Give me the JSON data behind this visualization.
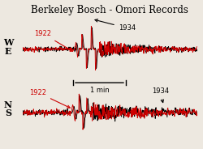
{
  "title": "Berkeley Bosch - Omori Records",
  "title_fontsize": 8.5,
  "background_color": "#ede8e0",
  "we_label": "W\nE",
  "ns_label": "N\nS",
  "label_fontsize": 8,
  "year1922_color": "#cc0000",
  "year1934_color": "#000000",
  "scale_bar_label": "1 min",
  "annotation_1922": "1922",
  "annotation_1934": "1934"
}
